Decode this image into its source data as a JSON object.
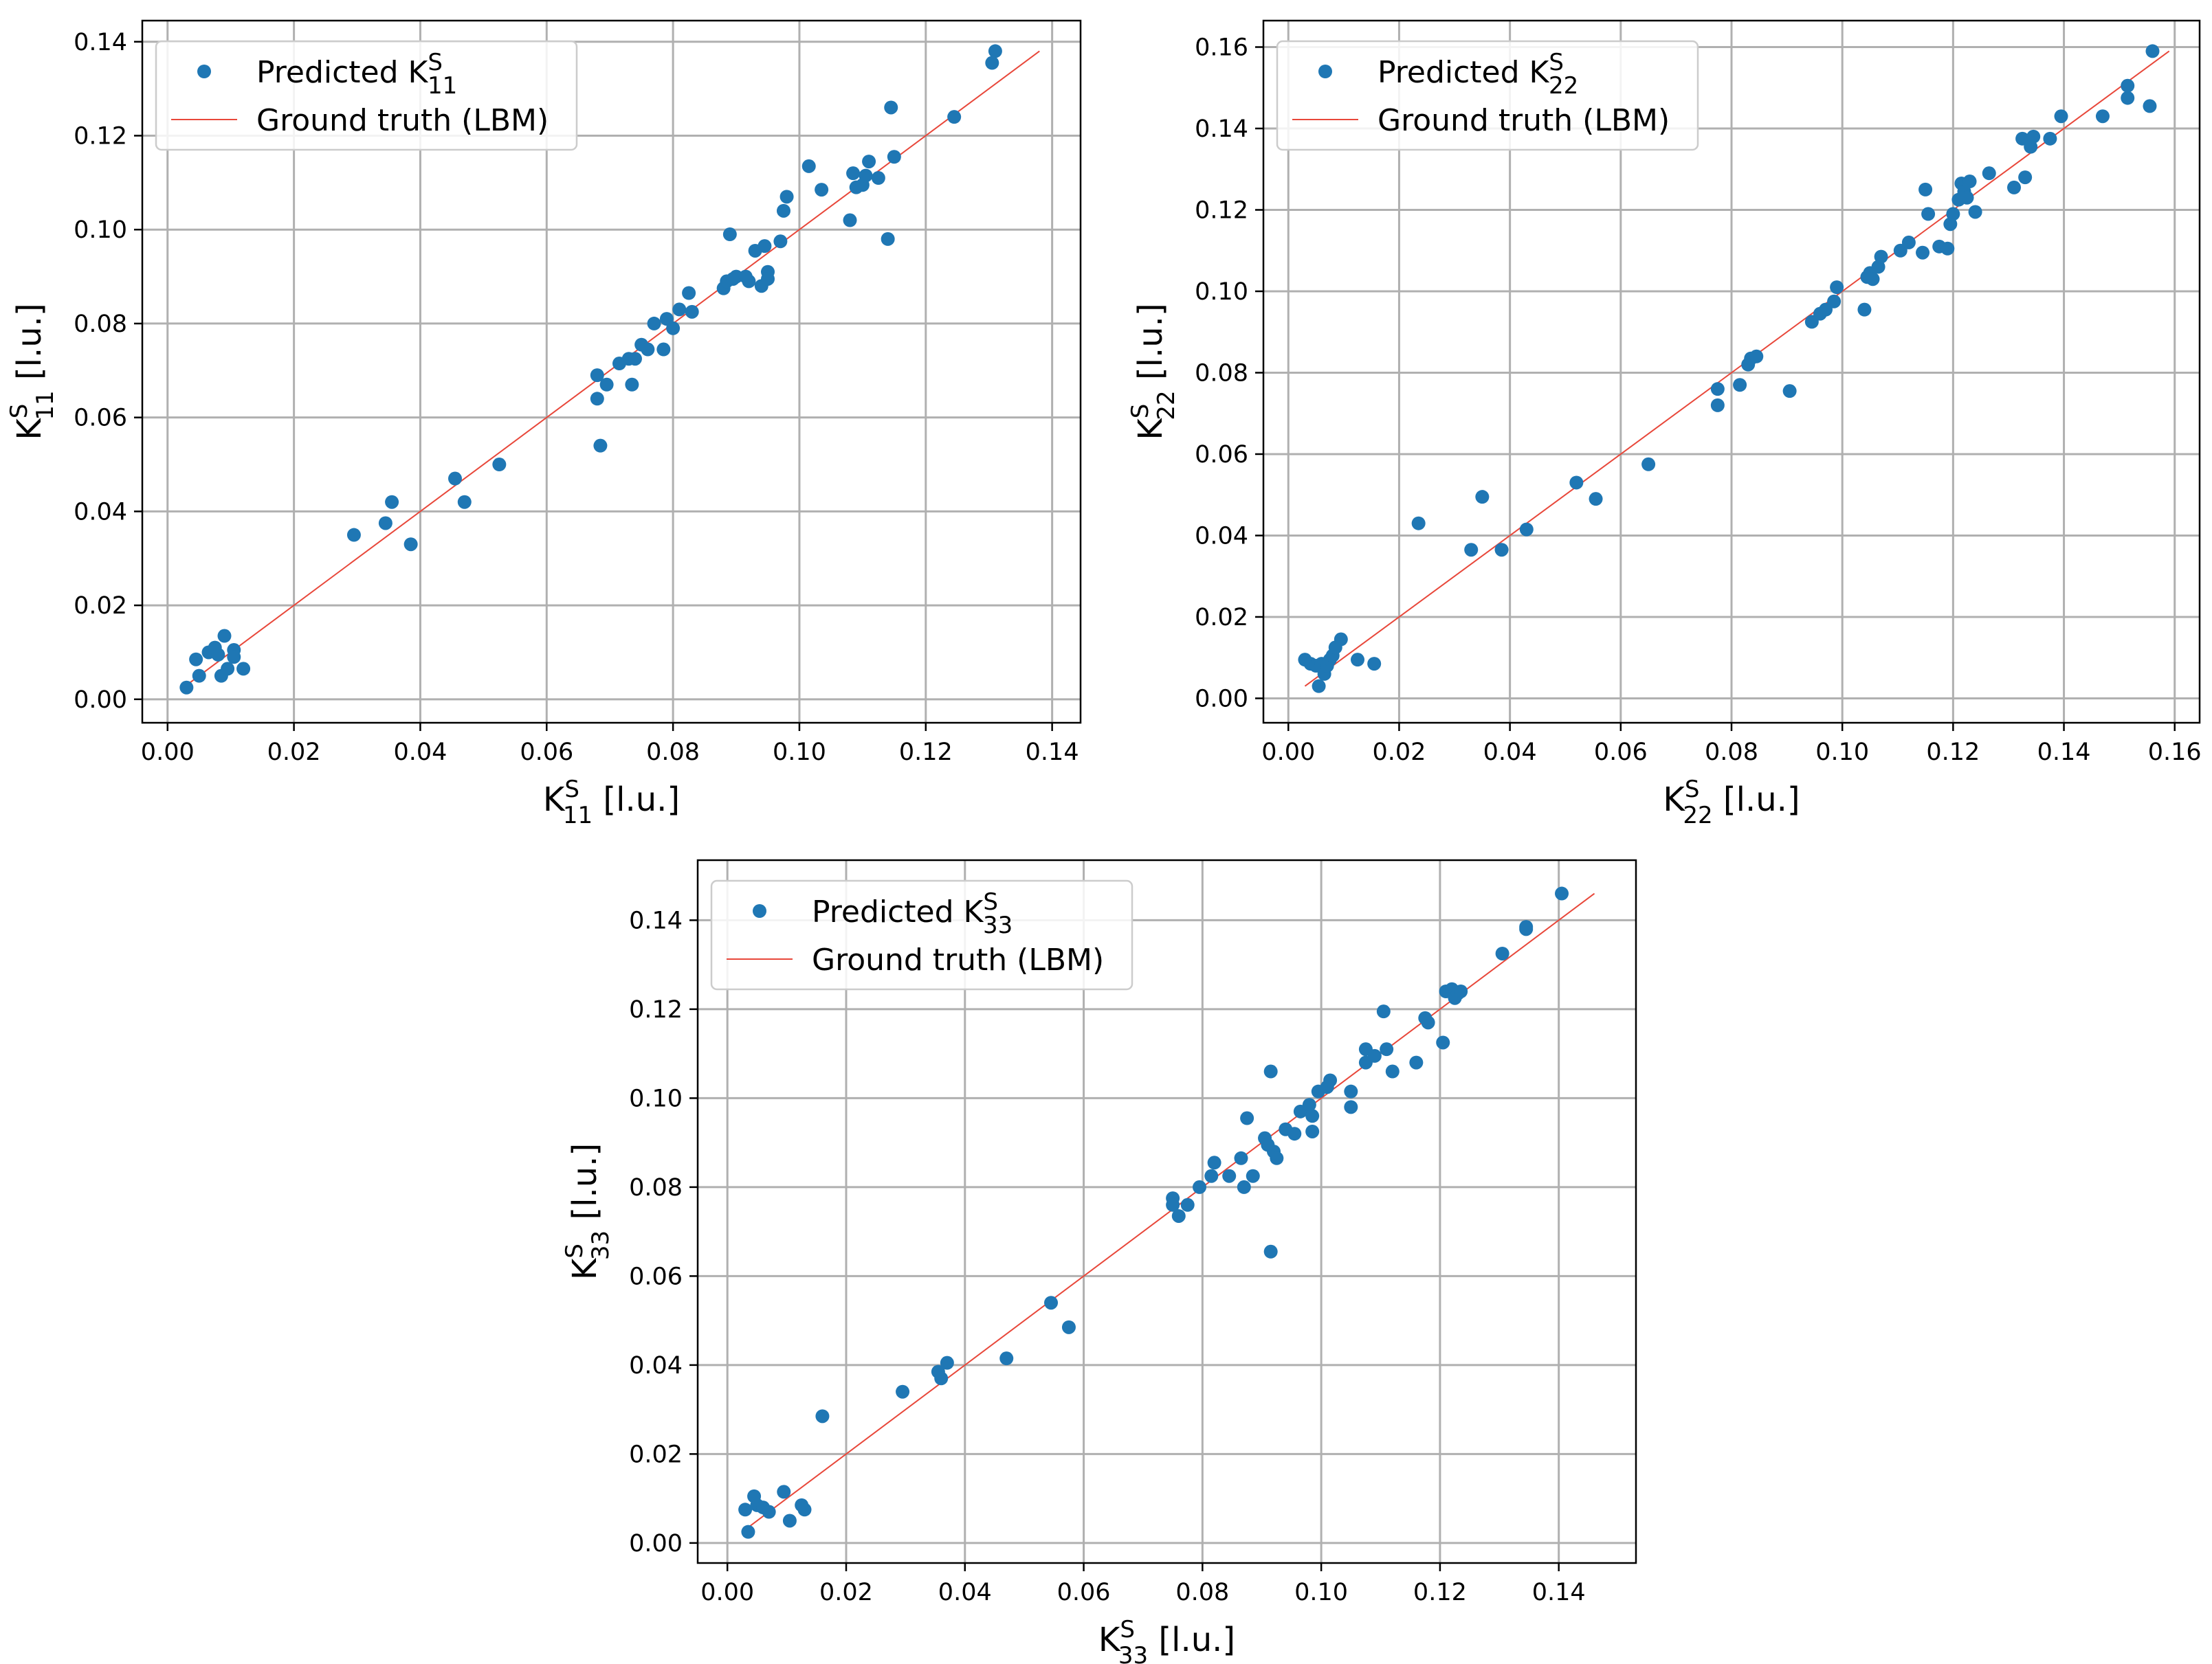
{
  "chart_data": [
    {
      "type": "scatter",
      "id": "k11",
      "xlabel": "K",
      "ylabel": "K",
      "label_sup": "S",
      "label_sub": "11",
      "label_unit": "[l.u.]",
      "xlim": [
        -0.004,
        0.1445
      ],
      "ylim": [
        -0.005,
        0.1445
      ],
      "xticks": [
        0.0,
        0.02,
        0.04,
        0.06,
        0.08,
        0.1,
        0.12,
        0.14
      ],
      "yticks": [
        0.0,
        0.02,
        0.04,
        0.06,
        0.08,
        0.1,
        0.12,
        0.14
      ],
      "xtick_labels": [
        "0.00",
        "0.02",
        "0.04",
        "0.06",
        "0.08",
        "0.10",
        "0.12",
        "0.14"
      ],
      "ytick_labels": [
        "0.00",
        "0.02",
        "0.04",
        "0.06",
        "0.08",
        "0.10",
        "0.12",
        "0.14"
      ],
      "grid": true,
      "legend_position": "upper-left",
      "legend": [
        {
          "label": "Predicted K",
          "sup": "S",
          "sub": "11",
          "color": "#1f77b4",
          "marker": "dot"
        },
        {
          "label": "Ground truth (LBM)",
          "color": "#e8473a",
          "marker": "line"
        }
      ],
      "ground_truth_line": [
        0.003,
        0.138
      ],
      "points": [
        [
          0.003,
          0.0025
        ],
        [
          0.0045,
          0.0085
        ],
        [
          0.005,
          0.005
        ],
        [
          0.0065,
          0.01
        ],
        [
          0.0075,
          0.011
        ],
        [
          0.008,
          0.0095
        ],
        [
          0.0085,
          0.005
        ],
        [
          0.009,
          0.0135
        ],
        [
          0.0095,
          0.0065
        ],
        [
          0.0105,
          0.0105
        ],
        [
          0.0105,
          0.009
        ],
        [
          0.012,
          0.0065
        ],
        [
          0.0295,
          0.035
        ],
        [
          0.0345,
          0.0375
        ],
        [
          0.0355,
          0.042
        ],
        [
          0.0385,
          0.033
        ],
        [
          0.0455,
          0.047
        ],
        [
          0.047,
          0.042
        ],
        [
          0.0525,
          0.05
        ],
        [
          0.068,
          0.069
        ],
        [
          0.068,
          0.064
        ],
        [
          0.0685,
          0.054
        ],
        [
          0.0695,
          0.067
        ],
        [
          0.0715,
          0.0715
        ],
        [
          0.073,
          0.0725
        ],
        [
          0.0735,
          0.067
        ],
        [
          0.074,
          0.0725
        ],
        [
          0.075,
          0.0755
        ],
        [
          0.076,
          0.0745
        ],
        [
          0.077,
          0.08
        ],
        [
          0.0785,
          0.0745
        ],
        [
          0.079,
          0.081
        ],
        [
          0.08,
          0.079
        ],
        [
          0.081,
          0.083
        ],
        [
          0.0825,
          0.0865
        ],
        [
          0.083,
          0.0825
        ],
        [
          0.088,
          0.0875
        ],
        [
          0.0885,
          0.089
        ],
        [
          0.089,
          0.099
        ],
        [
          0.0895,
          0.0895
        ],
        [
          0.09,
          0.09
        ],
        [
          0.0915,
          0.09
        ],
        [
          0.092,
          0.089
        ],
        [
          0.093,
          0.0955
        ],
        [
          0.094,
          0.088
        ],
        [
          0.0945,
          0.0965
        ],
        [
          0.095,
          0.091
        ],
        [
          0.095,
          0.0895
        ],
        [
          0.097,
          0.0975
        ],
        [
          0.0975,
          0.104
        ],
        [
          0.098,
          0.107
        ],
        [
          0.1015,
          0.1135
        ],
        [
          0.1035,
          0.1085
        ],
        [
          0.108,
          0.102
        ],
        [
          0.1085,
          0.112
        ],
        [
          0.109,
          0.109
        ],
        [
          0.11,
          0.1095
        ],
        [
          0.1105,
          0.1115
        ],
        [
          0.111,
          0.1145
        ],
        [
          0.1125,
          0.111
        ],
        [
          0.114,
          0.098
        ],
        [
          0.1145,
          0.126
        ],
        [
          0.115,
          0.1155
        ],
        [
          0.1245,
          0.124
        ],
        [
          0.1305,
          0.1355
        ],
        [
          0.131,
          0.138
        ]
      ]
    },
    {
      "type": "scatter",
      "id": "k22",
      "xlabel": "K",
      "ylabel": "K",
      "label_sup": "S",
      "label_sub": "22",
      "label_unit": "[l.u.]",
      "xlim": [
        -0.0045,
        0.1645
      ],
      "ylim": [
        -0.006,
        0.1665
      ],
      "xticks": [
        0.0,
        0.02,
        0.04,
        0.06,
        0.08,
        0.1,
        0.12,
        0.14,
        0.16
      ],
      "yticks": [
        0.0,
        0.02,
        0.04,
        0.06,
        0.08,
        0.1,
        0.12,
        0.14,
        0.16
      ],
      "xtick_labels": [
        "0.00",
        "0.02",
        "0.04",
        "0.06",
        "0.08",
        "0.10",
        "0.12",
        "0.14",
        "0.16"
      ],
      "ytick_labels": [
        "0.00",
        "0.02",
        "0.04",
        "0.06",
        "0.08",
        "0.10",
        "0.12",
        "0.14",
        "0.16"
      ],
      "grid": true,
      "legend_position": "upper-left",
      "legend": [
        {
          "label": "Predicted K",
          "sup": "S",
          "sub": "22",
          "color": "#1f77b4",
          "marker": "dot"
        },
        {
          "label": "Ground truth (LBM)",
          "color": "#e8473a",
          "marker": "line"
        }
      ],
      "ground_truth_line": [
        0.003,
        0.159
      ],
      "points": [
        [
          0.003,
          0.0095
        ],
        [
          0.004,
          0.0085
        ],
        [
          0.005,
          0.008
        ],
        [
          0.0055,
          0.003
        ],
        [
          0.006,
          0.0085
        ],
        [
          0.0065,
          0.006
        ],
        [
          0.007,
          0.008
        ],
        [
          0.0075,
          0.0095
        ],
        [
          0.008,
          0.0105
        ],
        [
          0.0085,
          0.0125
        ],
        [
          0.0095,
          0.0145
        ],
        [
          0.0125,
          0.0095
        ],
        [
          0.0155,
          0.0085
        ],
        [
          0.0235,
          0.043
        ],
        [
          0.033,
          0.0365
        ],
        [
          0.035,
          0.0495
        ],
        [
          0.0385,
          0.0365
        ],
        [
          0.043,
          0.0415
        ],
        [
          0.052,
          0.053
        ],
        [
          0.0555,
          0.049
        ],
        [
          0.065,
          0.0575
        ],
        [
          0.0775,
          0.072
        ],
        [
          0.0775,
          0.076
        ],
        [
          0.0815,
          0.077
        ],
        [
          0.083,
          0.082
        ],
        [
          0.0835,
          0.0835
        ],
        [
          0.0845,
          0.084
        ],
        [
          0.0905,
          0.0755
        ],
        [
          0.0945,
          0.0925
        ],
        [
          0.096,
          0.0945
        ],
        [
          0.097,
          0.0955
        ],
        [
          0.0985,
          0.0975
        ],
        [
          0.099,
          0.101
        ],
        [
          0.104,
          0.0955
        ],
        [
          0.1045,
          0.1035
        ],
        [
          0.105,
          0.1045
        ],
        [
          0.1055,
          0.103
        ],
        [
          0.1065,
          0.106
        ],
        [
          0.107,
          0.1085
        ],
        [
          0.1105,
          0.11
        ],
        [
          0.112,
          0.112
        ],
        [
          0.1145,
          0.1095
        ],
        [
          0.115,
          0.125
        ],
        [
          0.1155,
          0.119
        ],
        [
          0.1175,
          0.111
        ],
        [
          0.119,
          0.1105
        ],
        [
          0.1195,
          0.1165
        ],
        [
          0.12,
          0.119
        ],
        [
          0.121,
          0.1225
        ],
        [
          0.1215,
          0.1265
        ],
        [
          0.122,
          0.1245
        ],
        [
          0.1225,
          0.123
        ],
        [
          0.123,
          0.127
        ],
        [
          0.124,
          0.1195
        ],
        [
          0.1265,
          0.129
        ],
        [
          0.131,
          0.1255
        ],
        [
          0.1325,
          0.1375
        ],
        [
          0.133,
          0.128
        ],
        [
          0.134,
          0.1355
        ],
        [
          0.1345,
          0.138
        ],
        [
          0.1375,
          0.1375
        ],
        [
          0.1395,
          0.143
        ],
        [
          0.147,
          0.143
        ],
        [
          0.1515,
          0.1475
        ],
        [
          0.1515,
          0.1505
        ],
        [
          0.1555,
          0.1455
        ],
        [
          0.156,
          0.159
        ]
      ]
    },
    {
      "type": "scatter",
      "id": "k33",
      "xlabel": "K",
      "ylabel": "K",
      "label_sup": "S",
      "label_sub": "33",
      "label_unit": "[l.u.]",
      "xlim": [
        -0.005,
        0.153
      ],
      "ylim": [
        -0.0045,
        0.1535
      ],
      "xticks": [
        0.0,
        0.02,
        0.04,
        0.06,
        0.08,
        0.1,
        0.12,
        0.14
      ],
      "yticks": [
        0.0,
        0.02,
        0.04,
        0.06,
        0.08,
        0.1,
        0.12,
        0.14
      ],
      "xtick_labels": [
        "0.00",
        "0.02",
        "0.04",
        "0.06",
        "0.08",
        "0.10",
        "0.12",
        "0.14"
      ],
      "ytick_labels": [
        "0.00",
        "0.02",
        "0.04",
        "0.06",
        "0.08",
        "0.10",
        "0.12",
        "0.14"
      ],
      "grid": true,
      "legend_position": "upper-left",
      "legend": [
        {
          "label": "Predicted K",
          "sup": "S",
          "sub": "33",
          "color": "#1f77b4",
          "marker": "dot"
        },
        {
          "label": "Ground truth (LBM)",
          "color": "#e8473a",
          "marker": "line"
        }
      ],
      "ground_truth_line": [
        0.003,
        0.146
      ],
      "points": [
        [
          0.003,
          0.0075
        ],
        [
          0.0035,
          0.0025
        ],
        [
          0.0045,
          0.0105
        ],
        [
          0.005,
          0.0085
        ],
        [
          0.006,
          0.008
        ],
        [
          0.007,
          0.007
        ],
        [
          0.0095,
          0.0115
        ],
        [
          0.0105,
          0.005
        ],
        [
          0.0125,
          0.0085
        ],
        [
          0.013,
          0.0075
        ],
        [
          0.016,
          0.0285
        ],
        [
          0.0295,
          0.034
        ],
        [
          0.0355,
          0.0385
        ],
        [
          0.036,
          0.037
        ],
        [
          0.037,
          0.0405
        ],
        [
          0.047,
          0.0415
        ],
        [
          0.0545,
          0.054
        ],
        [
          0.0575,
          0.0485
        ],
        [
          0.075,
          0.0775
        ],
        [
          0.075,
          0.076
        ],
        [
          0.076,
          0.0735
        ],
        [
          0.0775,
          0.076
        ],
        [
          0.0795,
          0.08
        ],
        [
          0.0815,
          0.0825
        ],
        [
          0.082,
          0.0855
        ],
        [
          0.0845,
          0.0825
        ],
        [
          0.0865,
          0.0865
        ],
        [
          0.087,
          0.08
        ],
        [
          0.0875,
          0.0955
        ],
        [
          0.0885,
          0.0825
        ],
        [
          0.0905,
          0.091
        ],
        [
          0.091,
          0.0895
        ],
        [
          0.0915,
          0.106
        ],
        [
          0.0915,
          0.0655
        ],
        [
          0.092,
          0.088
        ],
        [
          0.0925,
          0.0865
        ],
        [
          0.094,
          0.093
        ],
        [
          0.0955,
          0.092
        ],
        [
          0.0965,
          0.097
        ],
        [
          0.098,
          0.0985
        ],
        [
          0.0985,
          0.096
        ],
        [
          0.0985,
          0.0925
        ],
        [
          0.0995,
          0.1015
        ],
        [
          0.101,
          0.1025
        ],
        [
          0.1015,
          0.104
        ],
        [
          0.105,
          0.098
        ],
        [
          0.105,
          0.1015
        ],
        [
          0.1075,
          0.108
        ],
        [
          0.1075,
          0.111
        ],
        [
          0.109,
          0.1095
        ],
        [
          0.1105,
          0.1195
        ],
        [
          0.111,
          0.111
        ],
        [
          0.112,
          0.106
        ],
        [
          0.116,
          0.108
        ],
        [
          0.1175,
          0.118
        ],
        [
          0.118,
          0.117
        ],
        [
          0.1205,
          0.1125
        ],
        [
          0.121,
          0.124
        ],
        [
          0.122,
          0.1245
        ],
        [
          0.1225,
          0.1225
        ],
        [
          0.123,
          0.1235
        ],
        [
          0.1235,
          0.124
        ],
        [
          0.1305,
          0.1325
        ],
        [
          0.1345,
          0.138
        ],
        [
          0.1345,
          0.1385
        ],
        [
          0.1405,
          0.146
        ]
      ]
    }
  ]
}
